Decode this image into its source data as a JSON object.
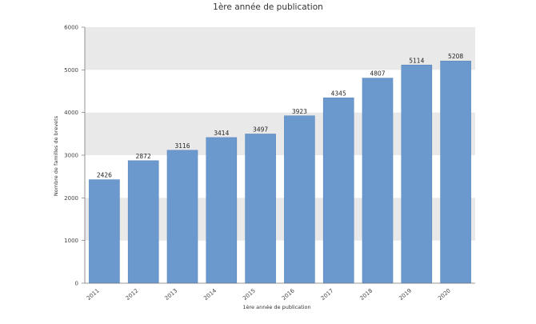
{
  "chart_data": {
    "type": "bar",
    "title": "1ère année de publication",
    "xlabel": "1ère année de publication",
    "ylabel": "Nombre de familles de brevets",
    "categories": [
      "2011",
      "2012",
      "2013",
      "2014",
      "2015",
      "2016",
      "2017",
      "2018",
      "2019",
      "2020"
    ],
    "values": [
      2426,
      2872,
      3116,
      3414,
      3497,
      3923,
      4345,
      4807,
      5114,
      5208
    ],
    "data_labels": [
      "2426",
      "2872",
      "3116",
      "3414",
      "3497",
      "3923",
      "4345",
      "4807",
      "5114",
      "5208"
    ],
    "ylim": [
      0,
      6000
    ],
    "yticks": [
      0,
      1000,
      2000,
      3000,
      4000,
      5000,
      6000
    ],
    "ytick_labels": [
      "0",
      "1000",
      "2000",
      "3000",
      "4000",
      "5000",
      "6000"
    ],
    "grid": "alternating horizontal bands",
    "legend": "none",
    "colors": {
      "bar": "#6b98cd",
      "bar_edge": "#5a87bd",
      "band": "#e9e9e9",
      "axis": "#777777"
    }
  }
}
